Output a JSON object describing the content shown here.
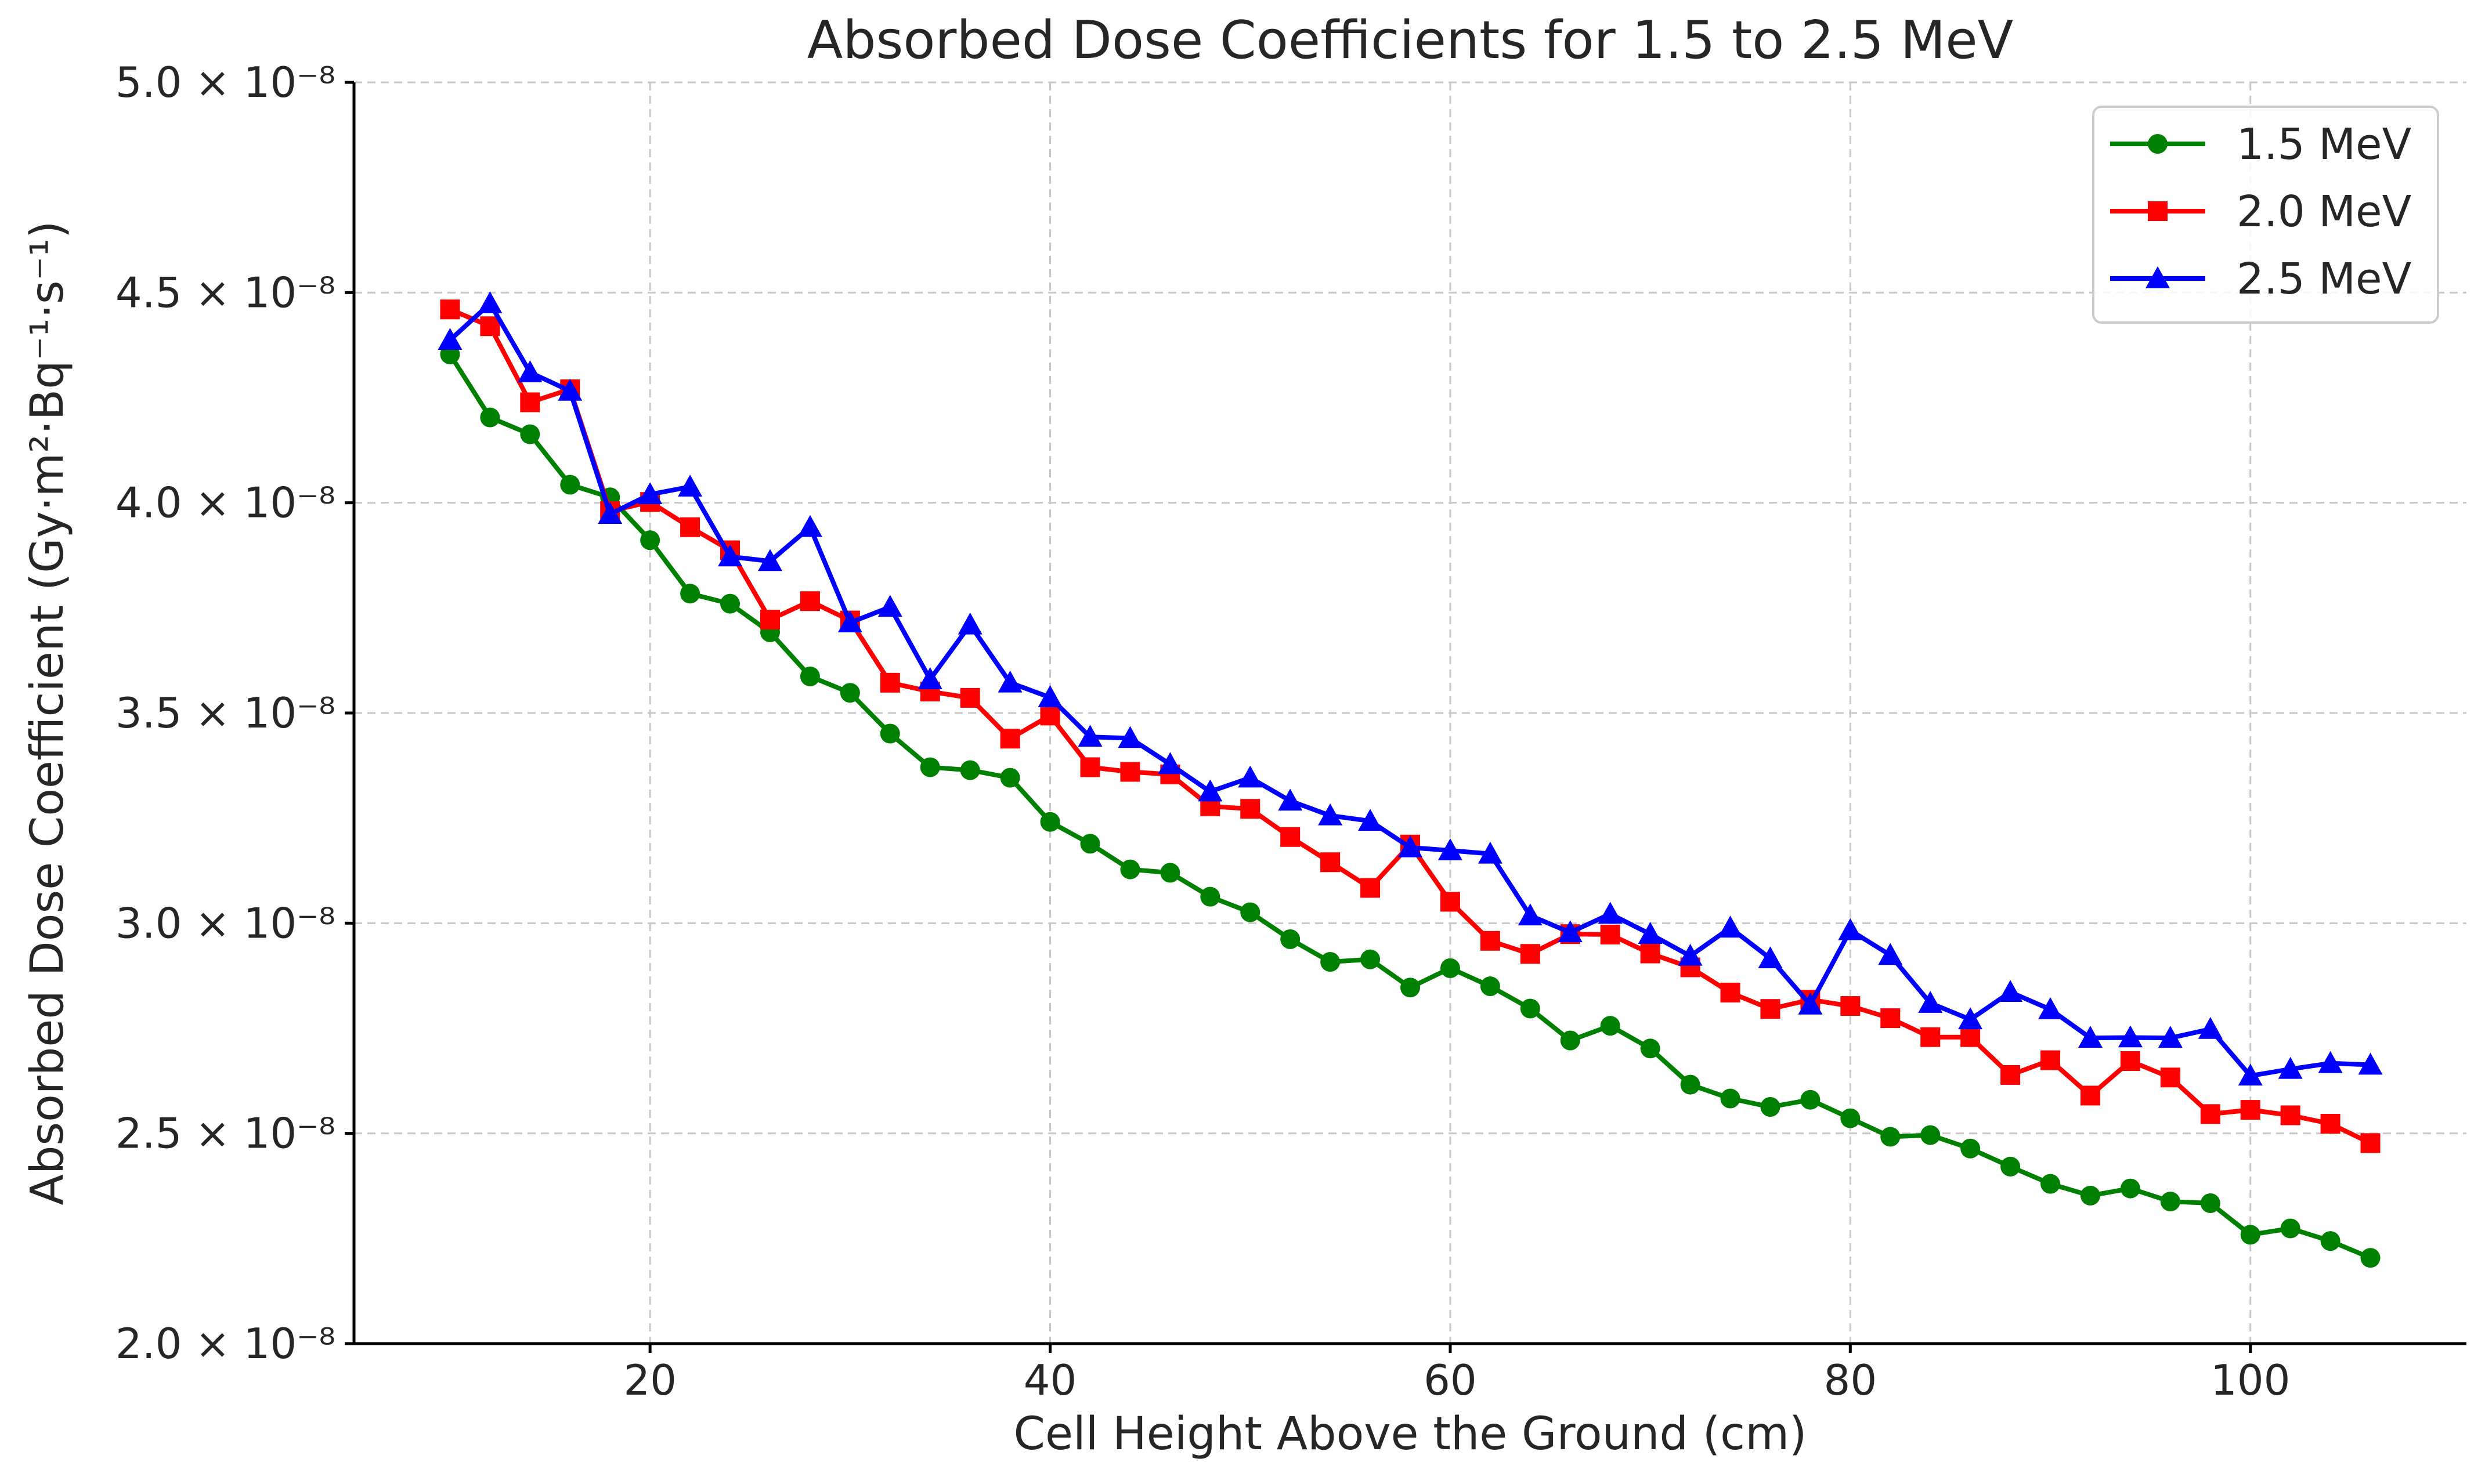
{
  "chart_data": {
    "type": "line",
    "title": "Absorbed Dose Coefficients for 1.5 to 2.5 MeV",
    "xlabel": "Cell Height Above the Ground (cm)",
    "ylabel": "Absorbed Dose Coefficient (Gy·m²·Bq⁻¹·s⁻¹)",
    "xlim": [
      5.2,
      110.8
    ],
    "ylim": [
      2e-08,
      5e-08
    ],
    "xticks": [
      20,
      40,
      60,
      80,
      100
    ],
    "xtick_labels": [
      "20",
      "40",
      "60",
      "80",
      "100"
    ],
    "yticks": [
      2e-08,
      2.5e-08,
      3e-08,
      3.5e-08,
      4e-08,
      4.5e-08,
      5e-08
    ],
    "ytick_labels": [
      "2.0 × 10⁻⁸",
      "2.5 × 10⁻⁸",
      "3.0 × 10⁻⁸",
      "3.5 × 10⁻⁸",
      "4.0 × 10⁻⁸",
      "4.5 × 10⁻⁸",
      "5.0 × 10⁻⁸"
    ],
    "grid": true,
    "legend_position": "top-right",
    "x": [
      10,
      12,
      14,
      16,
      18,
      20,
      22,
      24,
      26,
      28,
      30,
      32,
      34,
      36,
      38,
      40,
      42,
      44,
      46,
      48,
      50,
      52,
      54,
      56,
      58,
      60,
      62,
      64,
      66,
      68,
      70,
      72,
      74,
      76,
      78,
      80,
      82,
      84,
      86,
      88,
      90,
      92,
      94,
      96,
      98,
      100,
      102,
      104,
      106
    ],
    "series": [
      {
        "name": "1.5 MeV",
        "color": "#008000",
        "marker": "circle",
        "values": [
          4.353e-08,
          4.203e-08,
          4.163e-08,
          4.043e-08,
          4.013e-08,
          3.911e-08,
          3.784e-08,
          3.76e-08,
          3.692e-08,
          3.587e-08,
          3.548e-08,
          3.451e-08,
          3.371e-08,
          3.364e-08,
          3.346e-08,
          3.241e-08,
          3.189e-08,
          3.128e-08,
          3.12e-08,
          3.063e-08,
          3.026e-08,
          2.962e-08,
          2.908e-08,
          2.914e-08,
          2.847e-08,
          2.893e-08,
          2.85e-08,
          2.797e-08,
          2.721e-08,
          2.756e-08,
          2.702e-08,
          2.616e-08,
          2.583e-08,
          2.563e-08,
          2.58e-08,
          2.536e-08,
          2.492e-08,
          2.496e-08,
          2.464e-08,
          2.421e-08,
          2.38e-08,
          2.352e-08,
          2.369e-08,
          2.338e-08,
          2.334e-08,
          2.259e-08,
          2.274e-08,
          2.244e-08,
          2.204e-08
        ]
      },
      {
        "name": "2.0 MeV",
        "color": "#ff0000",
        "marker": "square",
        "values": [
          4.46e-08,
          4.42e-08,
          4.239e-08,
          4.27e-08,
          3.98e-08,
          4.002e-08,
          3.942e-08,
          3.887e-08,
          3.722e-08,
          3.766e-08,
          3.72e-08,
          3.572e-08,
          3.551e-08,
          3.536e-08,
          3.439e-08,
          3.494e-08,
          3.371e-08,
          3.36e-08,
          3.354e-08,
          3.278e-08,
          3.272e-08,
          3.205e-08,
          3.145e-08,
          3.084e-08,
          3.187e-08,
          3.051e-08,
          2.958e-08,
          2.927e-08,
          2.974e-08,
          2.973e-08,
          2.928e-08,
          2.895e-08,
          2.835e-08,
          2.796e-08,
          2.818e-08,
          2.803e-08,
          2.774e-08,
          2.729e-08,
          2.729e-08,
          2.639e-08,
          2.674e-08,
          2.59e-08,
          2.672e-08,
          2.633e-08,
          2.546e-08,
          2.556e-08,
          2.543e-08,
          2.523e-08,
          2.477e-08
        ]
      },
      {
        "name": "2.5 MeV",
        "color": "#0000ff",
        "marker": "triangle",
        "values": [
          4.387e-08,
          4.474e-08,
          4.31e-08,
          4.266e-08,
          3.973e-08,
          4.02e-08,
          4.038e-08,
          3.872e-08,
          3.861e-08,
          3.942e-08,
          3.715e-08,
          3.752e-08,
          3.58e-08,
          3.71e-08,
          3.572e-08,
          3.537e-08,
          3.443e-08,
          3.44e-08,
          3.378e-08,
          3.313e-08,
          3.346e-08,
          3.291e-08,
          3.256e-08,
          3.243e-08,
          3.18e-08,
          3.173e-08,
          3.165e-08,
          3.018e-08,
          2.978e-08,
          3.022e-08,
          2.974e-08,
          2.922e-08,
          2.989e-08,
          2.916e-08,
          2.806e-08,
          2.983e-08,
          2.924e-08,
          2.81e-08,
          2.771e-08,
          2.836e-08,
          2.795e-08,
          2.727e-08,
          2.728e-08,
          2.727e-08,
          2.748e-08,
          2.637e-08,
          2.653e-08,
          2.667e-08,
          2.663e-08
        ]
      }
    ]
  }
}
